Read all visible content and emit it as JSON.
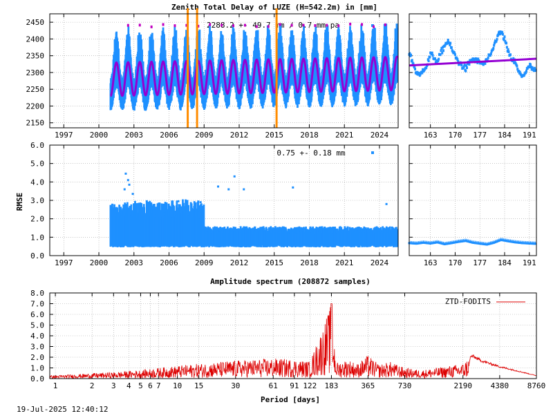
{
  "colors": {
    "observed": "#1e90ff",
    "model": "#9400d3",
    "outlier": "#c000c0",
    "breaks": "#ff8c00",
    "spectrum": "#dd0000",
    "axis": "#000000"
  },
  "chart_data": [
    {
      "id": "ztd-main",
      "type": "scatter",
      "title": "Zenith Total Delay of LUZE (H=542.2m) in [mm]",
      "annotation": "2288.2 +-  49.7 mm /  0.7 mm pa",
      "xlabel": "",
      "ylabel": "",
      "xlim": [
        1995.8,
        2025.6
      ],
      "ylim": [
        2135,
        2475
      ],
      "x_ticks": [
        1997,
        2000,
        2003,
        2006,
        2009,
        2012,
        2015,
        2018,
        2021,
        2024
      ],
      "y_ticks": [
        2150,
        2200,
        2250,
        2300,
        2350,
        2400,
        2450
      ],
      "data_start": 2001.0,
      "data_end": 2025.55,
      "mean": 2288.2,
      "seasonal_amplitude": 49.7,
      "trend_per_year": 0.7,
      "breaks": [
        2007.6,
        2008.4,
        2015.2
      ],
      "grid": true,
      "legend": "none",
      "series": [
        {
          "values_description_omitted": true,
          "model_x": [
            2001.0,
            2001.5,
            2002.0,
            2002.5,
            2003.0,
            2003.5,
            2004.0,
            2004.5,
            2005.0,
            2005.5,
            2006.0,
            2006.5,
            2007.0,
            2007.5,
            2008.0,
            2008.5,
            2009.0,
            2009.5,
            2010.0,
            2010.5,
            2011.0,
            2011.5,
            2012.0,
            2012.5,
            2013.0,
            2013.5,
            2014.0,
            2014.5,
            2015.0,
            2015.5,
            2016.0,
            2016.5,
            2017.0,
            2017.5,
            2018.0,
            2018.5,
            2019.0,
            2019.5,
            2020.0,
            2020.5,
            2021.0,
            2021.5,
            2022.0,
            2022.5,
            2023.0,
            2023.5,
            2024.0,
            2024.5,
            2025.0,
            2025.5
          ],
          "model_y": [
            2232,
            2332,
            2232,
            2333,
            2233,
            2333,
            2234,
            2334,
            2234,
            2335,
            2235,
            2335,
            2235,
            2336,
            2236,
            2336,
            2236,
            2337,
            2237,
            2337,
            2237,
            2338,
            2238,
            2338,
            2238,
            2339,
            2239,
            2339,
            2239,
            2340,
            2240,
            2340,
            2240,
            2341,
            2241,
            2341,
            2241,
            2342,
            2242,
            2342,
            2242,
            2343,
            2243,
            2343,
            2243,
            2344,
            2244,
            2344,
            2244,
            2345
          ]
        }
      ]
    },
    {
      "id": "ztd-recent",
      "type": "scatter",
      "xlim": [
        157,
        193
      ],
      "ylim": [
        2135,
        2475
      ],
      "x_ticks": [
        163,
        170,
        177,
        184,
        191
      ],
      "trend": [
        [
          157,
          2321
        ],
        [
          193,
          2341
        ]
      ],
      "x": [
        157,
        158,
        159,
        160,
        161,
        162,
        163,
        164,
        165,
        166,
        167,
        168,
        169,
        170,
        171,
        172,
        173,
        174,
        175,
        176,
        177,
        178,
        179,
        180,
        181,
        182,
        183,
        184,
        185,
        186,
        187,
        188,
        189,
        190,
        191,
        192,
        193
      ],
      "y": [
        2360,
        2330,
        2300,
        2290,
        2310,
        2320,
        2355,
        2345,
        2330,
        2360,
        2380,
        2395,
        2370,
        2350,
        2330,
        2320,
        2310,
        2330,
        2340,
        2335,
        2330,
        2325,
        2335,
        2350,
        2380,
        2410,
        2420,
        2400,
        2360,
        2340,
        2330,
        2300,
        2290,
        2300,
        2320,
        2310,
        2300
      ]
    },
    {
      "id": "rmse-main",
      "type": "scatter",
      "annotation": "0.75 +-  0.18 mm",
      "ylabel": "RMSE",
      "xlim": [
        1995.8,
        2025.6
      ],
      "ylim": [
        0,
        6.0
      ],
      "x_ticks": [
        1997,
        2000,
        2003,
        2006,
        2009,
        2012,
        2015,
        2018,
        2021,
        2024
      ],
      "y_ticks": [
        0.0,
        1.0,
        2.0,
        3.0,
        4.0,
        5.0,
        6.0
      ],
      "y_tick_labels": [
        "0.0",
        "1.0",
        "2.0",
        "3.0",
        "4.0",
        "5.0",
        "6.0"
      ],
      "mean": 0.75,
      "std": 0.18,
      "outliers": [
        [
          2002.3,
          4.45
        ],
        [
          2002.5,
          4.1
        ],
        [
          2002.6,
          3.85
        ],
        [
          2002.2,
          3.6
        ],
        [
          2002.9,
          3.35
        ],
        [
          2004.1,
          2.95
        ],
        [
          2006.8,
          2.95
        ],
        [
          2008.7,
          2.9
        ],
        [
          2010.2,
          3.75
        ],
        [
          2011.1,
          3.6
        ],
        [
          2011.6,
          4.3
        ],
        [
          2012.4,
          3.6
        ],
        [
          2016.6,
          3.7
        ],
        [
          2024.6,
          2.8
        ],
        [
          2004.9,
          2.6
        ],
        [
          2008.2,
          2.7
        ]
      ],
      "grid": true
    },
    {
      "id": "rmse-recent",
      "type": "scatter",
      "xlim": [
        157,
        193
      ],
      "ylim": [
        0,
        6.0
      ],
      "x_ticks": [
        163,
        170,
        177,
        184,
        191
      ],
      "x": [
        157,
        159,
        161,
        163,
        165,
        167,
        169,
        171,
        173,
        175,
        177,
        179,
        181,
        183,
        185,
        187,
        189,
        191,
        193
      ],
      "y": [
        0.68,
        0.65,
        0.7,
        0.66,
        0.72,
        0.62,
        0.68,
        0.75,
        0.8,
        0.7,
        0.65,
        0.6,
        0.7,
        0.85,
        0.78,
        0.72,
        0.68,
        0.66,
        0.64
      ]
    },
    {
      "id": "spectrum",
      "type": "line",
      "title": "Amplitude spectrum (208872 samples)",
      "xlabel": "Period [days]",
      "ylim": [
        0,
        8.0
      ],
      "y_ticks": [
        0.0,
        1.0,
        2.0,
        3.0,
        4.0,
        5.0,
        6.0,
        7.0,
        8.0
      ],
      "y_tick_labels": [
        "0.0",
        "1.0",
        "2.0",
        "3.0",
        "4.0",
        "5.0",
        "6.0",
        "7.0",
        "8.0"
      ],
      "x_tick_labels": [
        "1",
        "2",
        "3",
        "4",
        "5",
        "6",
        "7",
        "10",
        "15",
        "30",
        "61",
        "91",
        "122",
        "183",
        "365",
        "730",
        "2190",
        "4380",
        "8760"
      ],
      "x_tick_periods": [
        1,
        2,
        3,
        4,
        5,
        6,
        7,
        10,
        15,
        30,
        61,
        91,
        122,
        183,
        365,
        730,
        2190,
        4380,
        8760
      ],
      "legend": "top-right",
      "series": [
        {
          "name": "ZTD-FODITS",
          "peak_period": 183,
          "peak_amplitude": 7.0,
          "envelope_periods": [
            1,
            2,
            3,
            5,
            7,
            10,
            15,
            30,
            61,
            91,
            122,
            183,
            200,
            250,
            300,
            365,
            450,
            550,
            730,
            1000,
            1500,
            2190,
            2600,
            3100,
            4380,
            6000,
            8760
          ],
          "envelope_amplitudes": [
            0.3,
            0.5,
            0.6,
            0.8,
            1.0,
            1.2,
            1.4,
            1.7,
            1.9,
            1.8,
            1.6,
            7.0,
            1.5,
            1.8,
            1.4,
            2.2,
            1.3,
            1.6,
            1.0,
            0.8,
            1.1,
            1.4,
            2.3,
            1.8,
            1.2,
            0.8,
            0.3
          ]
        }
      ]
    }
  ],
  "footer": {
    "timestamp": "19-Jul-2025 12:40:12"
  }
}
